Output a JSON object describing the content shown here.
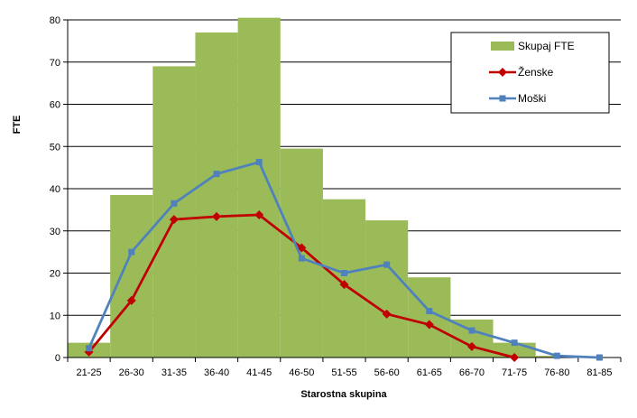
{
  "chart_data": {
    "type": "bar",
    "categories": [
      "21-25",
      "26-30",
      "31-35",
      "36-40",
      "41-45",
      "46-50",
      "51-55",
      "56-60",
      "61-65",
      "66-70",
      "71-75",
      "76-80",
      "81-85"
    ],
    "series": [
      {
        "name": "Skupaj FTE",
        "kind": "bar",
        "color": "#9BBB59",
        "values": [
          3.5,
          38.5,
          69,
          77,
          80.5,
          49.5,
          37.5,
          32.5,
          19,
          9,
          3.5,
          0.4,
          0
        ]
      },
      {
        "name": "Ženske",
        "kind": "line",
        "color": "#C00000",
        "marker": "diamond",
        "values": [
          1.3,
          13.5,
          32.7,
          33.4,
          33.8,
          26,
          17.3,
          10.3,
          7.8,
          2.6,
          0,
          null,
          null
        ]
      },
      {
        "name": "Moški",
        "kind": "line",
        "color": "#4F81BD",
        "marker": "square",
        "values": [
          2.2,
          25,
          36.5,
          43.5,
          46.3,
          23.5,
          20,
          22,
          11,
          6.4,
          3.5,
          0.4,
          0
        ]
      }
    ],
    "xlabel": "Starostna skupina",
    "ylabel": "FTE",
    "ylim": [
      0,
      80
    ],
    "yticks": [
      0,
      10,
      20,
      30,
      40,
      50,
      60,
      70,
      80
    ],
    "grid": true,
    "legend": "top-right"
  }
}
